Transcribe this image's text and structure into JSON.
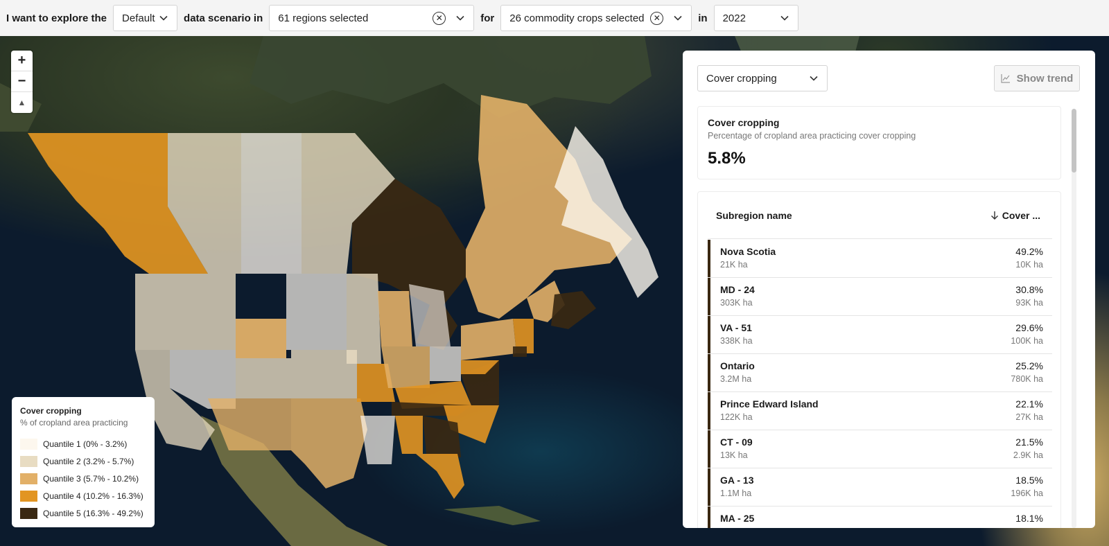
{
  "filters": {
    "intro": "I want to explore the",
    "scenario": "Default",
    "scenario_suffix": "data scenario in",
    "regions": "61 regions selected",
    "for_label": "for",
    "crops": "26 commodity crops selected",
    "in_label": "in",
    "year": "2022"
  },
  "zoom_controls": {
    "zoom_in": "+",
    "zoom_out": "−",
    "compass": "▲"
  },
  "legend": {
    "title": "Cover cropping",
    "subtitle": "% of cropland area practicing",
    "items": [
      {
        "label": "Quantile 1 (0% - 3.2%)",
        "color": "#fdf7ee"
      },
      {
        "label": "Quantile 2 (3.2% - 5.7%)",
        "color": "#e8dcc2"
      },
      {
        "label": "Quantile 3 (5.7% - 10.2%)",
        "color": "#e2b068"
      },
      {
        "label": "Quantile 4 (10.2% - 16.3%)",
        "color": "#e29522"
      },
      {
        "label": "Quantile 5 (16.3% - 49.2%)",
        "color": "#3a2812"
      }
    ]
  },
  "panel": {
    "metric": "Cover cropping",
    "trend_button": "Show trend",
    "summary": {
      "title": "Cover cropping",
      "subtitle": "Percentage of cropland area practicing cover cropping",
      "value": "5.8%"
    },
    "table": {
      "col_name": "Subregion name",
      "col_value": "Cover ...",
      "rows": [
        {
          "name": "Nova Scotia",
          "area": "21K ha",
          "pct": "49.2%",
          "area_cc": "10K ha"
        },
        {
          "name": "MD - 24",
          "area": "303K ha",
          "pct": "30.8%",
          "area_cc": "93K ha"
        },
        {
          "name": "VA - 51",
          "area": "338K ha",
          "pct": "29.6%",
          "area_cc": "100K ha"
        },
        {
          "name": "Ontario",
          "area": "3.2M ha",
          "pct": "25.2%",
          "area_cc": "780K ha"
        },
        {
          "name": "Prince Edward Island",
          "area": "122K ha",
          "pct": "22.1%",
          "area_cc": "27K ha"
        },
        {
          "name": "CT - 09",
          "area": "13K ha",
          "pct": "21.5%",
          "area_cc": "2.9K ha"
        },
        {
          "name": "GA - 13",
          "area": "1.1M ha",
          "pct": "18.5%",
          "area_cc": "196K ha"
        },
        {
          "name": "MA - 25",
          "area": "",
          "pct": "18.1%",
          "area_cc": ""
        }
      ]
    }
  }
}
